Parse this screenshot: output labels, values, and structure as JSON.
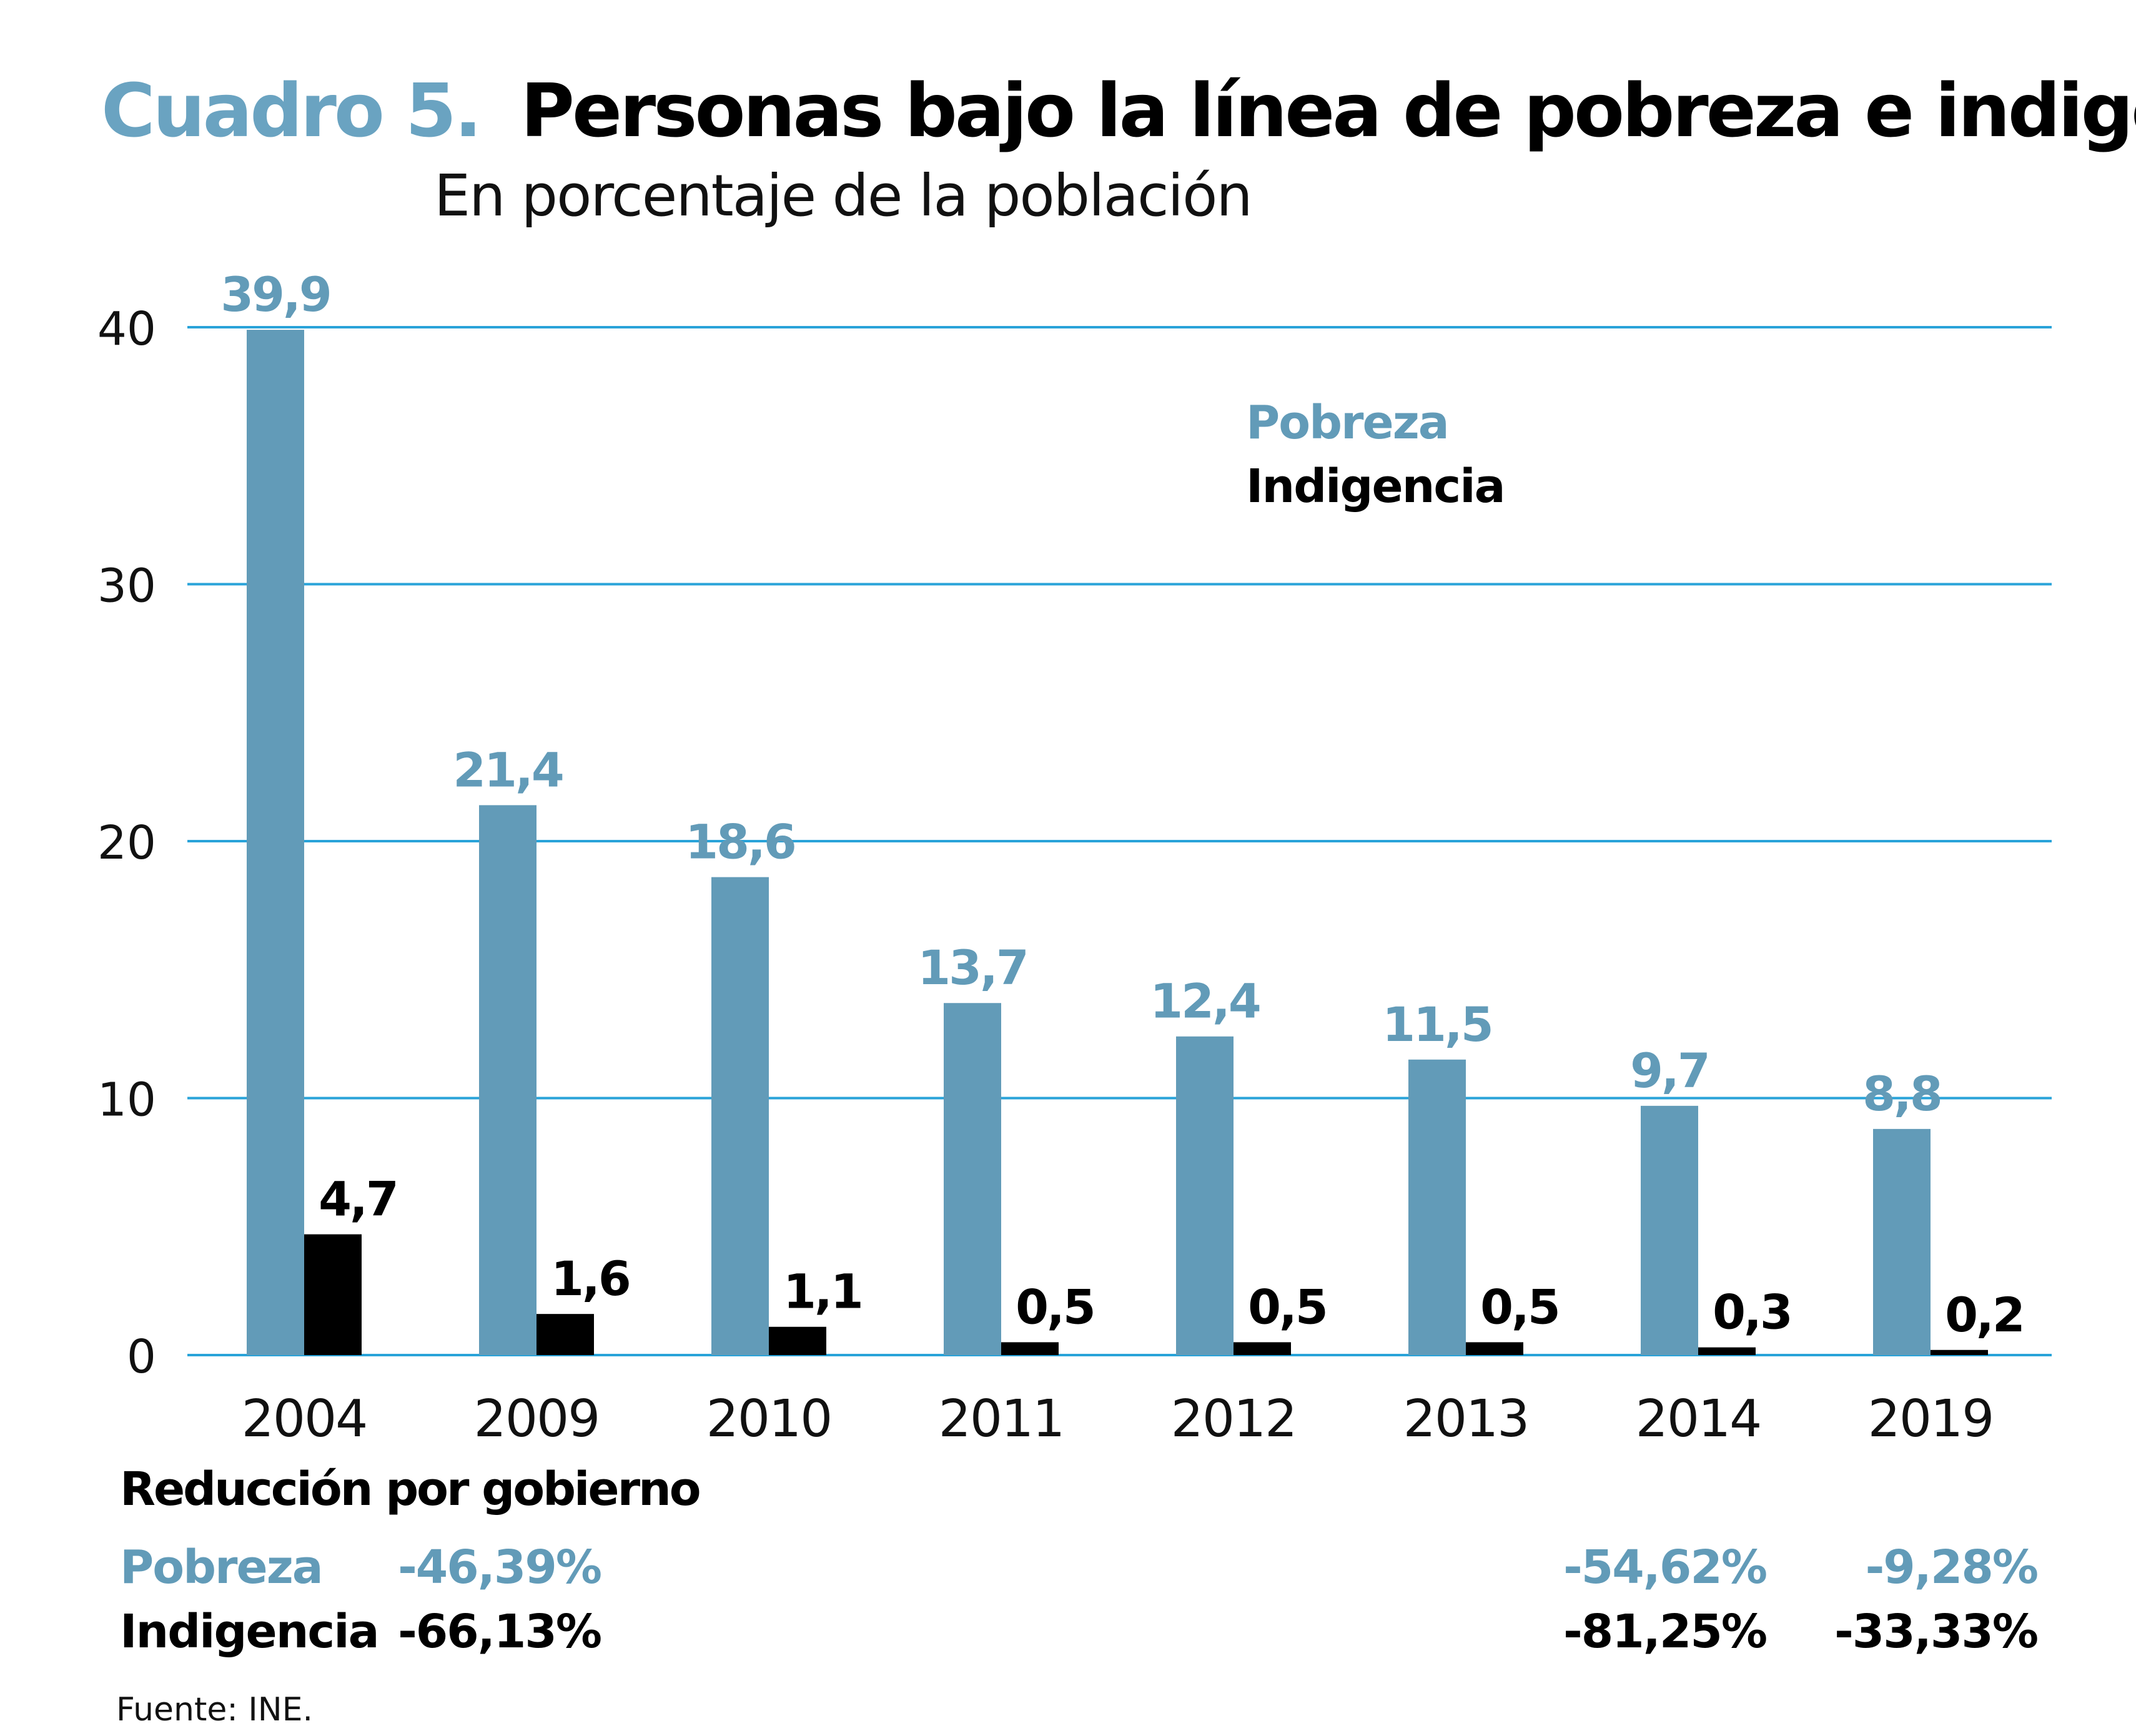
{
  "colors": {
    "pobreza": "#629bb8",
    "indigencia": "#000000",
    "grid": "#29a3d9",
    "text": "#111111",
    "title_prefix": "#6aa3c1"
  },
  "header": {
    "title_prefix": "Cuadro 5.",
    "title": "Personas bajo la línea de pobreza e indigencia",
    "subtitle": "En porcentaje de la población"
  },
  "legend": {
    "pobreza": "Pobreza",
    "indigencia": "Indigencia"
  },
  "chart_data": {
    "type": "bar",
    "categories": [
      "2004",
      "2009",
      "2010",
      "2011",
      "2012",
      "2013",
      "2014",
      "2019"
    ],
    "series": [
      {
        "name": "Pobreza",
        "values": [
          39.9,
          21.4,
          18.6,
          13.7,
          12.4,
          11.5,
          9.7,
          8.8
        ],
        "labels": [
          "39,9",
          "21,4",
          "18,6",
          "13,7",
          "12,4",
          "11,5",
          "9,7",
          "8,8"
        ]
      },
      {
        "name": "Indigencia",
        "values": [
          4.7,
          1.6,
          1.1,
          0.5,
          0.5,
          0.5,
          0.3,
          0.2
        ],
        "labels": [
          "4,7",
          "1,6",
          "1,1",
          "0,5",
          "0,5",
          "0,5",
          "0,3",
          "0,2"
        ]
      }
    ],
    "ylim": [
      0,
      40
    ],
    "yticks": [
      0,
      10,
      20,
      30,
      40
    ],
    "ytick_labels": [
      "0",
      "10",
      "20",
      "30",
      "40"
    ],
    "grid": true,
    "legend_position": "top-right"
  },
  "reduction": {
    "heading": "Reducción por gobierno",
    "rows": [
      {
        "label": "Pobreza",
        "values": [
          {
            "text": "-46,39%",
            "after_category": "2009"
          },
          {
            "text": "-54,62%",
            "after_category": "2014"
          },
          {
            "text": "-9,28%",
            "after_category": "2019"
          }
        ]
      },
      {
        "label": "Indigencia",
        "values": [
          {
            "text": "-66,13%",
            "after_category": "2009"
          },
          {
            "text": "-81,25%",
            "after_category": "2014"
          },
          {
            "text": "-33,33%",
            "after_category": "2019"
          }
        ]
      }
    ]
  },
  "source": "Fuente: INE."
}
